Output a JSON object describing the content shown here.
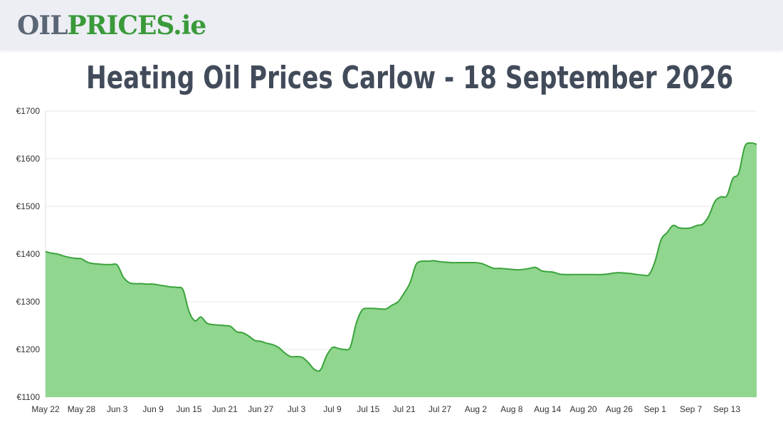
{
  "header": {
    "logo_part1": "OIL",
    "logo_part2": "PRICES",
    "logo_part3": ".ie"
  },
  "colors": {
    "header_bg": "#eceef4",
    "brand_green": "#3a9a3a",
    "brand_grey": "#5b6675",
    "area_fill": "#90d68f",
    "line": "#3aa33a"
  },
  "chart_data": {
    "type": "area",
    "title": "Heating Oil Prices Carlow - 18 September 2026",
    "ylim": [
      1100,
      1700
    ],
    "yticks": [
      1100,
      1200,
      1300,
      1400,
      1500,
      1600,
      1700
    ],
    "ytick_labels": [
      "€1100",
      "€1200",
      "€1300",
      "€1400",
      "€1500",
      "€1600",
      "€1700"
    ],
    "xtick_labels": [
      "May 22",
      "May 28",
      "Jun 3",
      "Jun 9",
      "Jun 15",
      "Jun 21",
      "Jun 27",
      "Jul 3",
      "Jul 9",
      "Jul 15",
      "Jul 21",
      "Jul 27",
      "Aug 2",
      "Aug 8",
      "Aug 14",
      "Aug 20",
      "Aug 26",
      "Sep 1",
      "Sep 7",
      "Sep 13"
    ],
    "grid": true,
    "series": [
      {
        "x": [
          "May 22",
          "May 23",
          "May 24",
          "May 25",
          "May 26",
          "May 27",
          "May 28",
          "May 29",
          "May 30",
          "May 31",
          "Jun 1",
          "Jun 2",
          "Jun 3",
          "Jun 4",
          "Jun 5",
          "Jun 6",
          "Jun 7",
          "Jun 8",
          "Jun 9",
          "Jun 10",
          "Jun 11",
          "Jun 12",
          "Jun 13",
          "Jun 14",
          "Jun 15",
          "Jun 16",
          "Jun 17",
          "Jun 18",
          "Jun 19",
          "Jun 20",
          "Jun 21",
          "Jun 22",
          "Jun 23",
          "Jun 24",
          "Jun 25",
          "Jun 26",
          "Jun 27",
          "Jun 28",
          "Jun 29",
          "Jun 30",
          "Jul 1",
          "Jul 2",
          "Jul 3",
          "Jul 4",
          "Jul 5",
          "Jul 6",
          "Jul 7",
          "Jul 8",
          "Jul 9",
          "Jul 10",
          "Jul 11",
          "Jul 12",
          "Jul 13",
          "Jul 14",
          "Jul 15",
          "Jul 16",
          "Jul 17",
          "Jul 18",
          "Jul 19",
          "Jul 20",
          "Jul 21",
          "Jul 22",
          "Jul 23",
          "Jul 24",
          "Jul 25",
          "Jul 26",
          "Jul 27",
          "Jul 28",
          "Jul 29",
          "Jul 30",
          "Jul 31",
          "Aug 1",
          "Aug 2",
          "Aug 3",
          "Aug 4",
          "Aug 5",
          "Aug 6",
          "Aug 7",
          "Aug 8",
          "Aug 9",
          "Aug 10",
          "Aug 11",
          "Aug 12",
          "Aug 13",
          "Aug 14",
          "Aug 15",
          "Aug 16",
          "Aug 17",
          "Aug 18",
          "Aug 19",
          "Aug 20",
          "Aug 21",
          "Aug 22",
          "Aug 23",
          "Aug 24",
          "Aug 25",
          "Aug 26",
          "Aug 27",
          "Aug 28",
          "Aug 29",
          "Aug 30",
          "Aug 31",
          "Sep 1",
          "Sep 2",
          "Sep 3",
          "Sep 4",
          "Sep 5",
          "Sep 6",
          "Sep 7",
          "Sep 8",
          "Sep 9",
          "Sep 10",
          "Sep 11",
          "Sep 12",
          "Sep 13",
          "Sep 14",
          "Sep 15",
          "Sep 16",
          "Sep 17",
          "Sep 18"
        ],
        "values": [
          1405,
          1402,
          1400,
          1396,
          1393,
          1391,
          1390,
          1383,
          1380,
          1379,
          1378,
          1378,
          1377,
          1352,
          1340,
          1338,
          1338,
          1337,
          1337,
          1335,
          1333,
          1331,
          1330,
          1325,
          1280,
          1260,
          1268,
          1255,
          1252,
          1251,
          1250,
          1248,
          1237,
          1235,
          1228,
          1219,
          1217,
          1213,
          1210,
          1204,
          1193,
          1185,
          1185,
          1183,
          1172,
          1158,
          1157,
          1186,
          1204,
          1202,
          1200,
          1205,
          1255,
          1283,
          1286,
          1286,
          1285,
          1285,
          1293,
          1300,
          1318,
          1340,
          1378,
          1385,
          1385,
          1386,
          1384,
          1383,
          1382,
          1382,
          1382,
          1382,
          1382,
          1380,
          1375,
          1370,
          1370,
          1369,
          1368,
          1367,
          1368,
          1370,
          1372,
          1365,
          1363,
          1362,
          1358,
          1357,
          1357,
          1357,
          1357,
          1357,
          1357,
          1357,
          1358,
          1360,
          1361,
          1360,
          1359,
          1357,
          1356,
          1357,
          1385,
          1430,
          1445,
          1460,
          1455,
          1454,
          1455,
          1460,
          1463,
          1480,
          1510,
          1520,
          1522,
          1558,
          1570,
          1625,
          1633,
          1630
        ]
      }
    ]
  }
}
